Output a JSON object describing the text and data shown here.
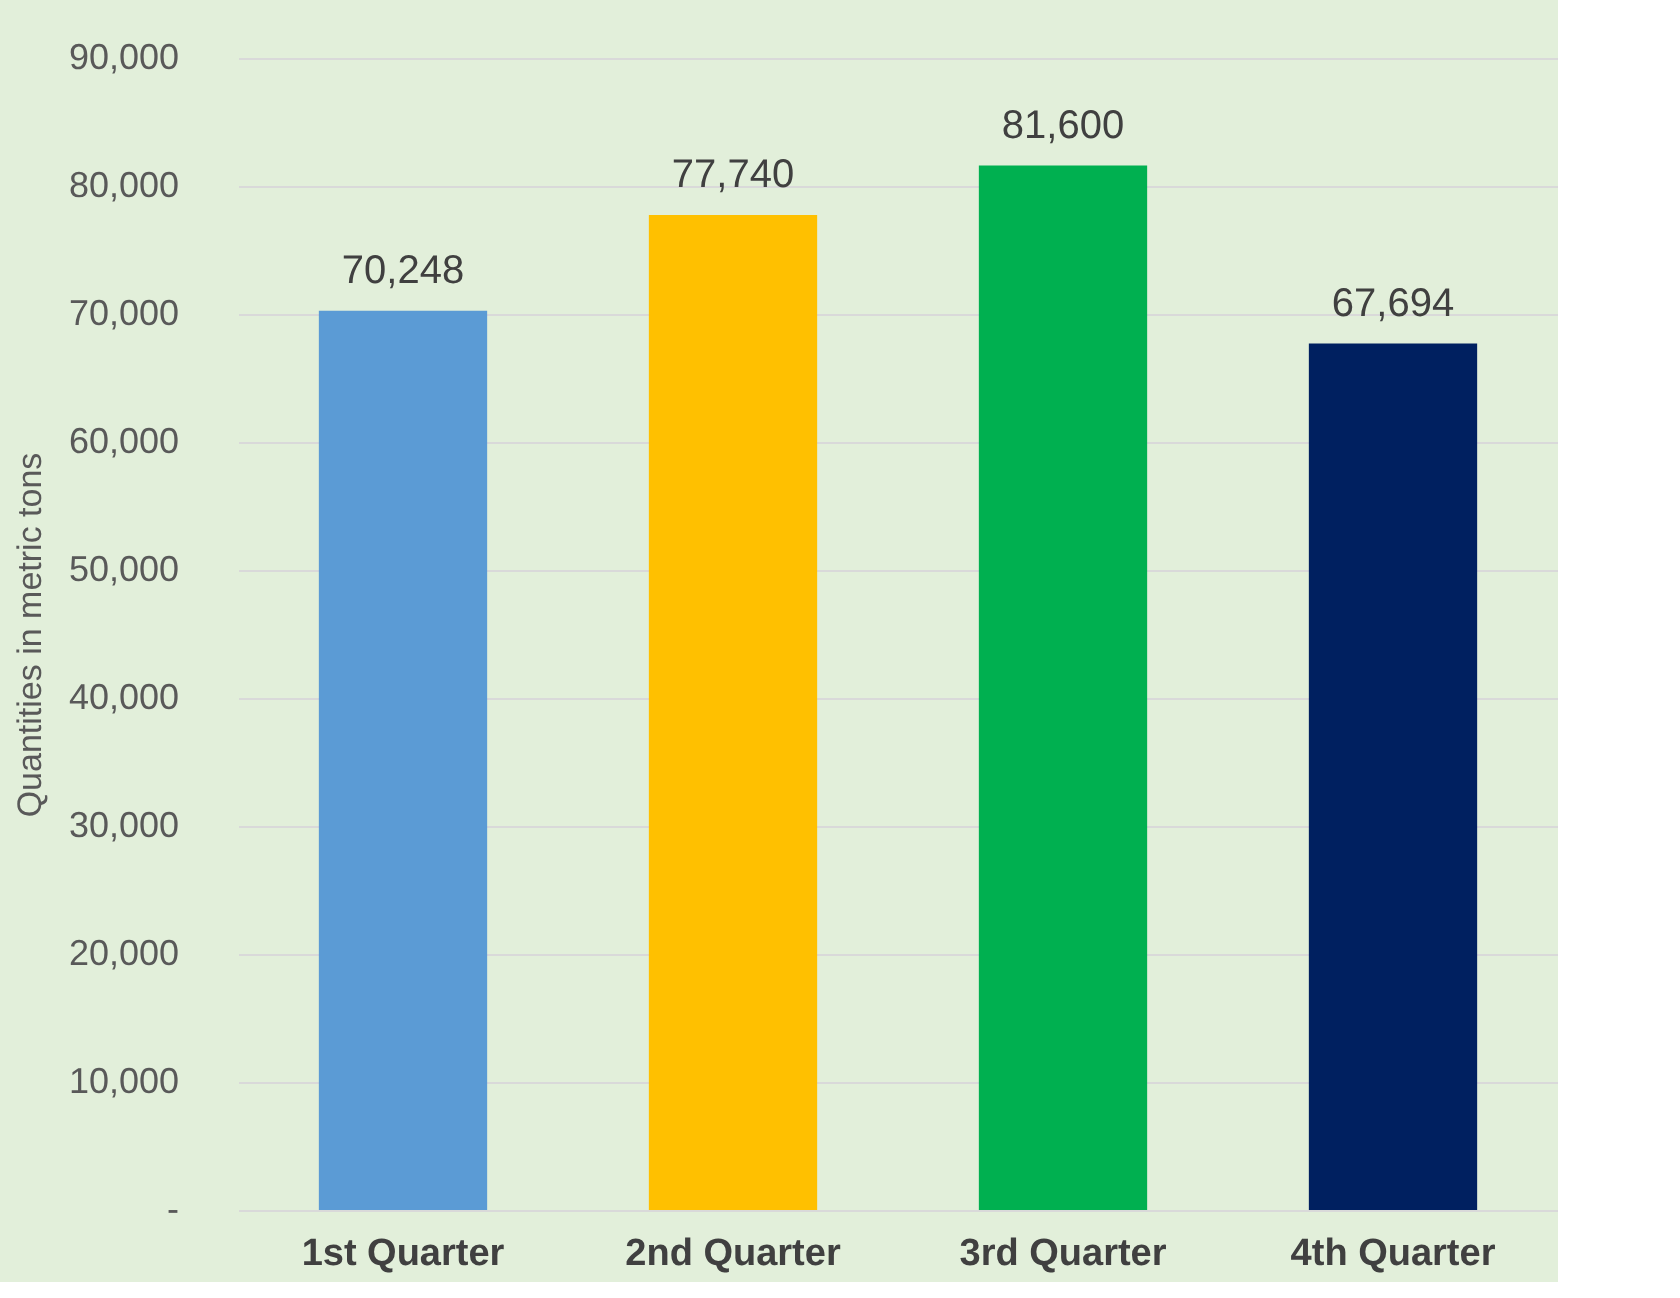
{
  "chart_data": {
    "type": "bar",
    "ylabel": "Quantities in metric tons",
    "categories": [
      "1st Quarter",
      "2nd Quarter",
      "3rd Quarter",
      "4th Quarter"
    ],
    "values": [
      70248,
      77740,
      81600,
      67694
    ],
    "colors": [
      "#5b9bd5",
      "#ffc000",
      "#00b050",
      "#002060"
    ],
    "ylim": [
      0,
      90000
    ],
    "yticks": [
      {
        "value": 0,
        "label": "-"
      },
      {
        "value": 10000,
        "label": "10,000"
      },
      {
        "value": 20000,
        "label": "20,000"
      },
      {
        "value": 30000,
        "label": "30,000"
      },
      {
        "value": 40000,
        "label": "40,000"
      },
      {
        "value": 50000,
        "label": "50,000"
      },
      {
        "value": 60000,
        "label": "60,000"
      },
      {
        "value": 70000,
        "label": "70,000"
      },
      {
        "value": 80000,
        "label": "80,000"
      },
      {
        "value": 90000,
        "label": "90,000"
      }
    ],
    "value_labels": [
      "70,248",
      "77,740",
      "81,600",
      "67,694"
    ],
    "grid": "y"
  }
}
